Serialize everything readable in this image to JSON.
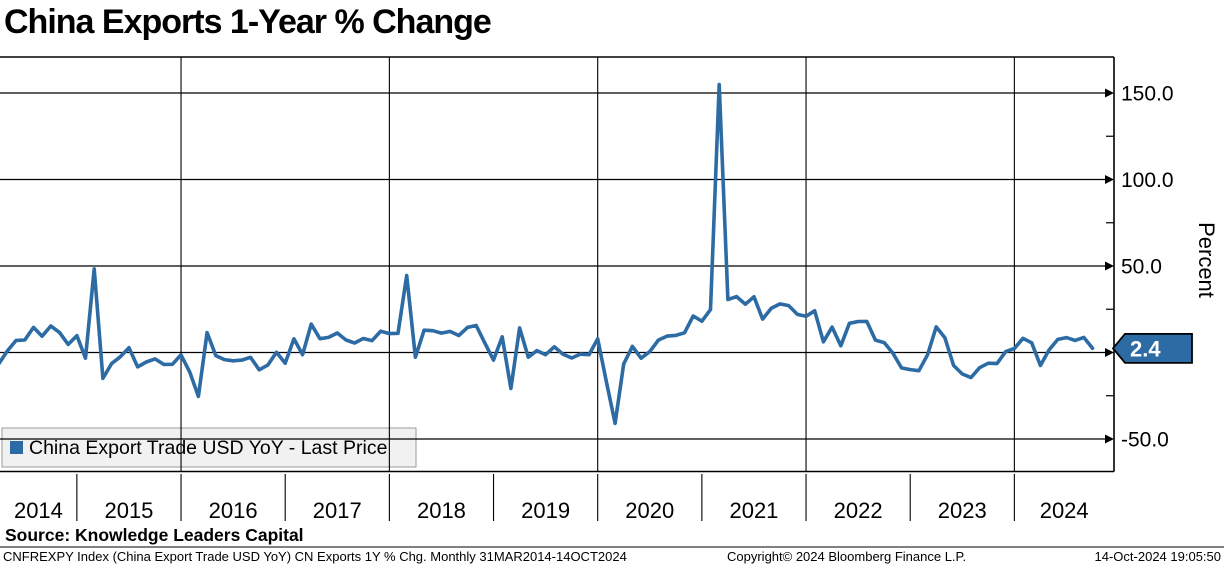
{
  "header": {
    "title": "China Exports 1-Year % Change"
  },
  "legend": {
    "label": "China Export Trade USD YoY - Last Price",
    "swatch_color": "#2d6ba4"
  },
  "footer": {
    "source": "Source: Knowledge Leaders Capital",
    "ticker_info": "CNFREXPY Index (China Export Trade USD YoY) CN Exports 1Y % Chg.  Monthly 31MAR2014-14OCT2024",
    "copyright": "Copyright© 2024 Bloomberg Finance L.P.",
    "timestamp": "14-Oct-2024 19:05:50"
  },
  "chart_data": {
    "type": "line",
    "title": "China Exports 1-Year % Change",
    "xlabel": "",
    "ylabel": "Percent",
    "line_color": "#2d6ba4",
    "background_color": "#ffffff",
    "grid_color": "#000000",
    "last_price": 2.4,
    "last_price_label": "2.4",
    "y_axis": {
      "ylim": [
        -69,
        171
      ],
      "gridlines": [
        150,
        100,
        50,
        0,
        -50
      ],
      "labels": {
        "150": "150.0",
        "100": "100.0",
        "50": "50.0",
        "-50": "-50.0"
      },
      "minor_ticks": [
        125,
        75,
        25,
        -25
      ]
    },
    "x_axis": {
      "year_labels": [
        "2014",
        "2015",
        "2016",
        "2017",
        "2018",
        "2019",
        "2020",
        "2021",
        "2022",
        "2023",
        "2024"
      ],
      "gridline_years": [
        2016,
        2018,
        2020,
        2022,
        2024
      ],
      "range_label": "31MAR2014-14OCT2024"
    },
    "series": [
      {
        "name": "China Export Trade USD YoY - Last Price",
        "points": [
          [
            "2014-03",
            -6.6
          ],
          [
            "2014-04",
            0.9
          ],
          [
            "2014-05",
            7.0
          ],
          [
            "2014-06",
            7.2
          ],
          [
            "2014-07",
            14.5
          ],
          [
            "2014-08",
            9.4
          ],
          [
            "2014-09",
            15.3
          ],
          [
            "2014-10",
            11.6
          ],
          [
            "2014-11",
            4.7
          ],
          [
            "2014-12",
            9.7
          ],
          [
            "2015-01",
            -3.3
          ],
          [
            "2015-02",
            48.3
          ],
          [
            "2015-03",
            -15.0
          ],
          [
            "2015-04",
            -6.4
          ],
          [
            "2015-05",
            -2.5
          ],
          [
            "2015-06",
            2.8
          ],
          [
            "2015-07",
            -8.3
          ],
          [
            "2015-08",
            -5.5
          ],
          [
            "2015-09",
            -3.7
          ],
          [
            "2015-10",
            -6.9
          ],
          [
            "2015-11",
            -6.8
          ],
          [
            "2015-12",
            -1.4
          ],
          [
            "2016-01",
            -11.2
          ],
          [
            "2016-02",
            -25.4
          ],
          [
            "2016-03",
            11.5
          ],
          [
            "2016-04",
            -1.8
          ],
          [
            "2016-05",
            -4.1
          ],
          [
            "2016-06",
            -4.8
          ],
          [
            "2016-07",
            -4.4
          ],
          [
            "2016-08",
            -2.8
          ],
          [
            "2016-09",
            -10.0
          ],
          [
            "2016-10",
            -7.3
          ],
          [
            "2016-11",
            0.1
          ],
          [
            "2016-12",
            -6.2
          ],
          [
            "2017-01",
            7.9
          ],
          [
            "2017-02",
            -1.3
          ],
          [
            "2017-03",
            16.4
          ],
          [
            "2017-04",
            8.0
          ],
          [
            "2017-05",
            8.7
          ],
          [
            "2017-06",
            11.3
          ],
          [
            "2017-07",
            7.2
          ],
          [
            "2017-08",
            5.5
          ],
          [
            "2017-09",
            8.1
          ],
          [
            "2017-10",
            6.9
          ],
          [
            "2017-11",
            12.3
          ],
          [
            "2017-12",
            10.9
          ],
          [
            "2018-01",
            11.1
          ],
          [
            "2018-02",
            44.5
          ],
          [
            "2018-03",
            -2.7
          ],
          [
            "2018-04",
            12.9
          ],
          [
            "2018-05",
            12.6
          ],
          [
            "2018-06",
            11.2
          ],
          [
            "2018-07",
            12.2
          ],
          [
            "2018-08",
            9.8
          ],
          [
            "2018-09",
            14.5
          ],
          [
            "2018-10",
            15.6
          ],
          [
            "2018-11",
            5.4
          ],
          [
            "2018-12",
            -4.4
          ],
          [
            "2019-01",
            9.1
          ],
          [
            "2019-02",
            -20.8
          ],
          [
            "2019-03",
            14.2
          ],
          [
            "2019-04",
            -2.7
          ],
          [
            "2019-05",
            1.1
          ],
          [
            "2019-06",
            -1.3
          ],
          [
            "2019-07",
            3.3
          ],
          [
            "2019-08",
            -1.0
          ],
          [
            "2019-09",
            -3.2
          ],
          [
            "2019-10",
            -0.9
          ],
          [
            "2019-11",
            -1.3
          ],
          [
            "2019-12",
            7.9
          ],
          [
            "2020-01",
            -17.0
          ],
          [
            "2020-02",
            -41.0
          ],
          [
            "2020-03",
            -6.6
          ],
          [
            "2020-04",
            3.5
          ],
          [
            "2020-05",
            -3.3
          ],
          [
            "2020-06",
            0.5
          ],
          [
            "2020-07",
            7.2
          ],
          [
            "2020-08",
            9.5
          ],
          [
            "2020-09",
            9.9
          ],
          [
            "2020-10",
            11.4
          ],
          [
            "2020-11",
            21.1
          ],
          [
            "2020-12",
            18.1
          ],
          [
            "2021-01",
            24.8
          ],
          [
            "2021-02",
            154.9
          ],
          [
            "2021-03",
            30.6
          ],
          [
            "2021-04",
            32.3
          ],
          [
            "2021-05",
            27.9
          ],
          [
            "2021-06",
            32.2
          ],
          [
            "2021-07",
            19.3
          ],
          [
            "2021-08",
            25.6
          ],
          [
            "2021-09",
            28.1
          ],
          [
            "2021-10",
            27.1
          ],
          [
            "2021-11",
            22.0
          ],
          [
            "2021-12",
            20.9
          ],
          [
            "2022-01",
            24.1
          ],
          [
            "2022-02",
            6.2
          ],
          [
            "2022-03",
            14.7
          ],
          [
            "2022-04",
            3.9
          ],
          [
            "2022-05",
            16.9
          ],
          [
            "2022-06",
            17.9
          ],
          [
            "2022-07",
            18.0
          ],
          [
            "2022-08",
            7.1
          ],
          [
            "2022-09",
            5.7
          ],
          [
            "2022-10",
            -0.3
          ],
          [
            "2022-11",
            -8.9
          ],
          [
            "2022-12",
            -9.9
          ],
          [
            "2023-01",
            -10.5
          ],
          [
            "2023-02",
            -1.3
          ],
          [
            "2023-03",
            14.8
          ],
          [
            "2023-04",
            8.5
          ],
          [
            "2023-05",
            -7.5
          ],
          [
            "2023-06",
            -12.4
          ],
          [
            "2023-07",
            -14.5
          ],
          [
            "2023-08",
            -8.8
          ],
          [
            "2023-09",
            -6.2
          ],
          [
            "2023-10",
            -6.4
          ],
          [
            "2023-11",
            0.5
          ],
          [
            "2023-12",
            2.3
          ],
          [
            "2024-01",
            8.2
          ],
          [
            "2024-02",
            5.6
          ],
          [
            "2024-03",
            -7.5
          ],
          [
            "2024-04",
            1.5
          ],
          [
            "2024-05",
            7.6
          ],
          [
            "2024-06",
            8.6
          ],
          [
            "2024-07",
            7.0
          ],
          [
            "2024-08",
            8.7
          ],
          [
            "2024-09",
            2.4
          ]
        ]
      }
    ]
  }
}
